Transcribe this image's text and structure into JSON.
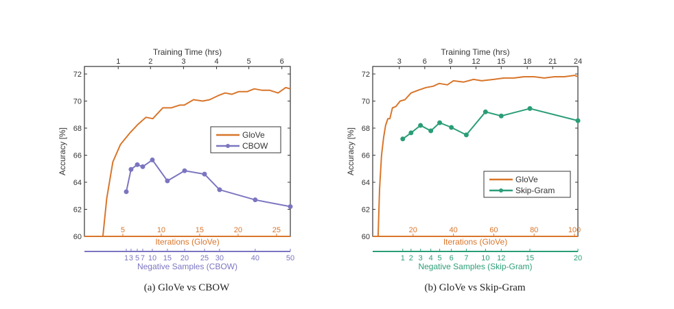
{
  "colors": {
    "glove": "#d8752a",
    "cbow": "#7b75c0",
    "skipgram": "#2a9d78",
    "axis": "#333333"
  },
  "chart_data": [
    {
      "type": "line",
      "caption": "(a)  GloVe vs CBOW",
      "ylabel": "Accuracy [%]",
      "ylim": [
        60,
        72.5
      ],
      "yticks": [
        60,
        62,
        64,
        66,
        68,
        70,
        72
      ],
      "top_axis": {
        "label": "Training Time (hrs)",
        "ticks": [
          1,
          2,
          3,
          4,
          5,
          6
        ],
        "tick_positions_iter": [
          4.4,
          8.6,
          12.9,
          17.2,
          21.4,
          25.7
        ]
      },
      "bottom_axis": {
        "label": "Iterations (GloVe)",
        "ticks": [
          5,
          10,
          15,
          20,
          25
        ],
        "xlim": [
          0,
          26.8
        ]
      },
      "second_axis": {
        "label": "Negative Samples (CBOW)",
        "ticks": [
          1,
          3,
          5,
          7,
          10,
          15,
          20,
          25,
          30,
          40,
          50
        ],
        "tick_labels": [
          "1",
          "3",
          "5",
          "7",
          "10",
          "15",
          "20",
          "25",
          "30",
          "40",
          "50"
        ],
        "tick_positions_iter": [
          5.45,
          6.07,
          6.88,
          7.59,
          8.84,
          10.8,
          13.04,
          15.63,
          17.59,
          22.23,
          26.8
        ]
      },
      "legend": {
        "position": "center-right",
        "entries": [
          "GloVe",
          "CBOW"
        ]
      },
      "series": [
        {
          "name": "GloVe",
          "x": [
            0,
            2.4,
            2.9,
            3.7,
            4.7,
            6.0,
            7.0,
            8.0,
            8.9,
            10.2,
            11.3,
            12.4,
            13.0,
            14.2,
            15.4,
            16.3,
            17.4,
            18.3,
            19.2,
            20.1,
            21.2,
            22.1,
            23.1,
            24.1,
            25.2,
            26.2,
            26.8
          ],
          "y": [
            60,
            60,
            62.8,
            65.5,
            66.8,
            67.7,
            68.3,
            68.8,
            68.7,
            69.5,
            69.5,
            69.7,
            69.7,
            70.1,
            70.0,
            70.1,
            70.4,
            70.6,
            70.5,
            70.7,
            70.7,
            70.9,
            70.8,
            70.8,
            70.6,
            71.0,
            70.9
          ]
        },
        {
          "name": "CBOW",
          "markers": true,
          "neg_samples": [
            1,
            3,
            5,
            7,
            10,
            15,
            20,
            25,
            30,
            40,
            50
          ],
          "y": [
            63.3,
            64.95,
            65.3,
            65.15,
            65.65,
            64.1,
            64.85,
            64.6,
            63.45,
            62.7,
            62.2
          ]
        }
      ]
    },
    {
      "type": "line",
      "caption": "(b)  GloVe vs Skip-Gram",
      "ylabel": "Accuracy [%]",
      "ylim": [
        60,
        72.5
      ],
      "yticks": [
        60,
        62,
        64,
        66,
        68,
        70,
        72
      ],
      "top_axis": {
        "label": "Training Time (hrs)",
        "ticks": [
          3,
          6,
          9,
          12,
          15,
          18,
          21,
          24
        ],
        "tick_positions_iter": [
          13.2,
          25.8,
          38.6,
          51.2,
          63.7,
          76.6,
          89.2,
          101.7
        ]
      },
      "bottom_axis": {
        "label": "Iterations (GloVe)",
        "ticks": [
          20,
          40,
          60,
          80,
          100
        ],
        "xlim": [
          0,
          101.7
        ]
      },
      "second_axis": {
        "label": "Negative Samples (Skip-Gram)",
        "ticks": [
          1,
          2,
          3,
          4,
          5,
          6,
          7,
          10,
          12,
          15,
          20
        ],
        "tick_labels": [
          "1",
          "2",
          "3",
          "4",
          "5",
          "6",
          "7",
          "10",
          "12",
          "15",
          "20"
        ],
        "tick_positions_iter": [
          14.9,
          19.0,
          23.7,
          28.8,
          33.2,
          39.0,
          46.4,
          55.9,
          63.7,
          77.9,
          101.7
        ]
      },
      "legend": {
        "position": "lower-right",
        "entries": [
          "GloVe",
          "Skip-Gram"
        ]
      },
      "series": [
        {
          "name": "GloVe",
          "x": [
            0,
            2.7,
            3.4,
            4.4,
            5.4,
            6.4,
            7.5,
            8.5,
            9.8,
            11.5,
            13.6,
            16.0,
            19.0,
            22.5,
            26.4,
            30.0,
            33.0,
            37.0,
            40.0,
            45.0,
            50.0,
            54.0,
            60.0,
            65.0,
            70.0,
            75.0,
            80.0,
            85.0,
            90.0,
            95.0,
            100.0,
            101.7
          ],
          "y": [
            60,
            60,
            63.5,
            66.0,
            67.3,
            68.2,
            68.7,
            68.7,
            69.5,
            69.6,
            70.0,
            70.1,
            70.6,
            70.8,
            71.0,
            71.1,
            71.3,
            71.2,
            71.5,
            71.4,
            71.6,
            71.5,
            71.6,
            71.7,
            71.7,
            71.8,
            71.8,
            71.7,
            71.8,
            71.8,
            71.9,
            71.8
          ]
        },
        {
          "name": "Skip-Gram",
          "markers": true,
          "neg_samples": [
            1,
            2,
            3,
            4,
            5,
            6,
            7,
            10,
            12,
            15,
            20
          ],
          "y": [
            67.2,
            67.65,
            68.2,
            67.8,
            68.4,
            68.05,
            67.5,
            69.2,
            68.9,
            69.45,
            68.55
          ]
        }
      ]
    }
  ]
}
